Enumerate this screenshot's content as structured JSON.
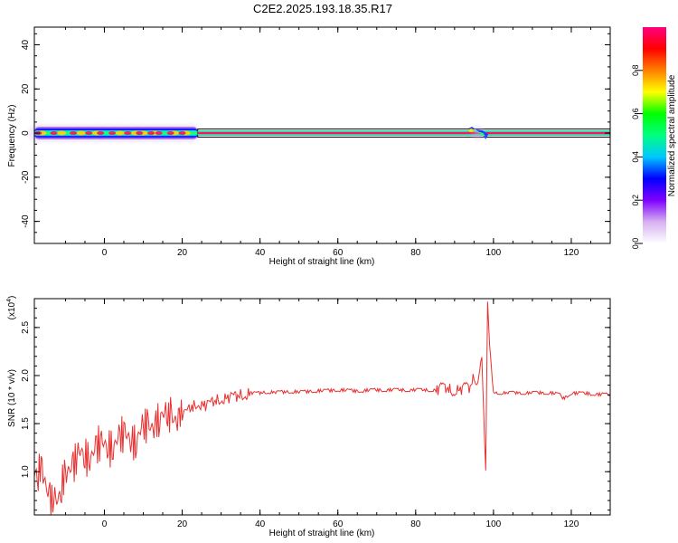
{
  "title": "C2E2.2025.193.18.35.R17",
  "chart_data": [
    {
      "type": "heatmap",
      "xlabel": "Height of straight line (km)",
      "ylabel": "Frequency (Hz)",
      "xlim": [
        -18,
        130
      ],
      "ylim": [
        -50,
        48
      ],
      "xticks": [
        0,
        20,
        40,
        60,
        80,
        100,
        120
      ],
      "yticks": [
        40,
        20,
        0,
        -20,
        -40
      ],
      "grid": false,
      "ridge": {
        "noisy_segment_km": [
          -18,
          24
        ],
        "clean_segment_km": [
          24,
          130
        ],
        "frequency_hz": 0,
        "disturbance_km": [
          94,
          98
        ],
        "hot_spots_km": [
          -17,
          -13,
          -8,
          -4,
          -1,
          2,
          6,
          9,
          12,
          14,
          17,
          20
        ],
        "warm_spots_km": [
          -16,
          -11,
          -6,
          -2,
          4,
          8,
          10,
          13,
          18,
          21
        ]
      },
      "colorbar": {
        "label": "Normalized spectral amplitude",
        "range": [
          0,
          1
        ],
        "ticks": [
          0.0,
          0.2,
          0.4,
          0.6,
          0.8
        ],
        "colors": [
          "#ffffff",
          "#d6b0f0",
          "#8000ff",
          "#0000ff",
          "#00c8ff",
          "#00ff80",
          "#00ff00",
          "#ffff00",
          "#ff8000",
          "#ff0000",
          "#ff0080"
        ]
      }
    },
    {
      "type": "line",
      "xlabel": "Height of straight line (km)",
      "ylabel": "SNR (10 * v/v)",
      "y_multiplier": "(x10",
      "y_multiplier_exp": "4",
      "y_multiplier_close": ")",
      "xlim": [
        -18,
        130
      ],
      "ylim": [
        0.55,
        2.8
      ],
      "xticks": [
        0,
        20,
        40,
        60,
        80,
        100,
        120
      ],
      "yticks": [
        1.0,
        1.5,
        2.0,
        2.5
      ],
      "ytick_labels": [
        "1.0",
        "1.5",
        "2.0",
        "2.5"
      ],
      "grid": false,
      "series": [
        {
          "color": "#e83030",
          "x": [
            -18,
            -16,
            -14,
            -12,
            -10,
            -8,
            -6,
            -4,
            -2,
            0,
            2,
            4,
            6,
            8,
            10,
            12,
            14,
            16,
            18,
            20,
            22,
            24,
            26,
            28,
            30,
            32,
            34,
            36,
            38,
            40,
            45,
            50,
            55,
            60,
            65,
            70,
            75,
            80,
            85,
            88,
            90,
            92,
            94,
            95,
            96,
            97,
            98,
            98.5,
            99,
            100,
            105,
            110,
            115,
            117,
            118,
            120,
            125,
            130
          ],
          "y": [
            0.9,
            1.1,
            0.7,
            0.65,
            1.05,
            1.05,
            1.2,
            1.15,
            1.25,
            1.3,
            1.25,
            1.35,
            1.4,
            1.3,
            1.45,
            1.5,
            1.55,
            1.55,
            1.6,
            1.6,
            1.65,
            1.7,
            1.7,
            1.72,
            1.75,
            1.78,
            1.78,
            1.8,
            1.82,
            1.82,
            1.83,
            1.83,
            1.84,
            1.85,
            1.84,
            1.85,
            1.85,
            1.85,
            1.85,
            1.86,
            1.86,
            1.85,
            1.87,
            2.0,
            1.95,
            2.2,
            1.0,
            2.75,
            2.3,
            1.82,
            1.82,
            1.82,
            1.82,
            1.8,
            1.76,
            1.82,
            1.81,
            1.8
          ]
        }
      ]
    }
  ]
}
